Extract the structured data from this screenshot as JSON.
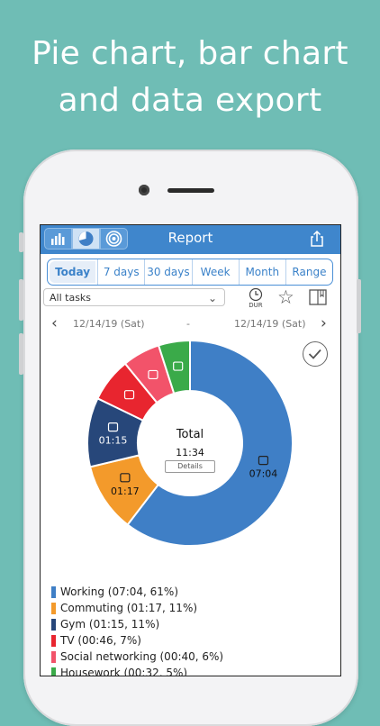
{
  "headline": {
    "line1": "Pie chart, bar chart",
    "line2": "and data export"
  },
  "app": {
    "title": "Report",
    "nav_icons": [
      "bar-chart-icon",
      "pie-chart-icon",
      "radial-chart-icon"
    ],
    "share_icon": "share-icon"
  },
  "tabs": [
    "Today",
    "7 days",
    "30 days",
    "Week",
    "Month",
    "Range"
  ],
  "active_tab": "Today",
  "filter": {
    "task_select_value": "All tasks",
    "dur_label": "DUR",
    "icons": [
      "clock-icon",
      "star-icon",
      "bookmark-icon"
    ]
  },
  "date_range": {
    "start": "12/14/19 (Sat)",
    "separator": "-",
    "end": "12/14/19 (Sat)"
  },
  "center": {
    "title": "Total",
    "total": "11:34",
    "details_label": "Details"
  },
  "chart_data": {
    "type": "pie",
    "title": "Total",
    "total": "11:34",
    "slices": [
      {
        "name": "Working",
        "duration": "07:04",
        "percent": 61,
        "color": "#3f7fc6",
        "label": "07:04",
        "icon": "notepad-icon"
      },
      {
        "name": "Commuting",
        "duration": "01:17",
        "percent": 11,
        "color": "#f39a2b",
        "label": "01:17",
        "icon": "car-icon"
      },
      {
        "name": "Gym",
        "duration": "01:15",
        "percent": 11,
        "color": "#27477a",
        "label": "01:15",
        "icon": "treadmill-icon"
      },
      {
        "name": "TV",
        "duration": "00:46",
        "percent": 7,
        "color": "#e8252f",
        "label": "",
        "icon": "tv-icon"
      },
      {
        "name": "Social networking",
        "duration": "00:40",
        "percent": 6,
        "color": "#f2536a",
        "label": "",
        "icon": "facebook-icon"
      },
      {
        "name": "Housework",
        "duration": "00:32",
        "percent": 5,
        "color": "#3aaa49",
        "label": "",
        "icon": "broom-icon"
      }
    ]
  },
  "legend": [
    {
      "text": "Working (07:04, 61%)",
      "color": "#3f7fc6"
    },
    {
      "text": "Commuting (01:17, 11%)",
      "color": "#f39a2b"
    },
    {
      "text": "Gym (01:15, 11%)",
      "color": "#27477a"
    },
    {
      "text": "TV (00:46, 7%)",
      "color": "#e8252f"
    },
    {
      "text": "Social networking (00:40, 6%)",
      "color": "#f2536a"
    },
    {
      "text": "Housework (00:32, 5%)",
      "color": "#3aaa49"
    }
  ]
}
